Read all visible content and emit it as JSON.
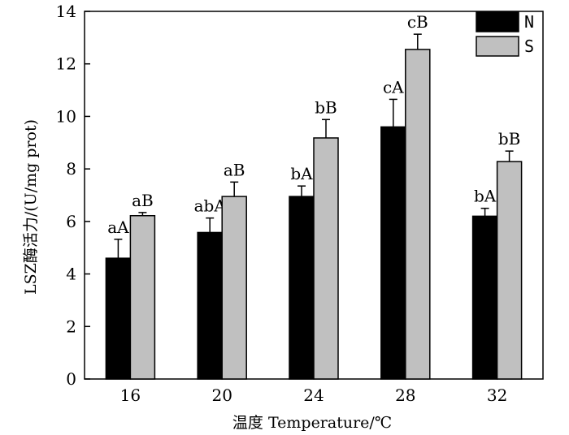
{
  "chart_data": {
    "type": "bar",
    "categories": [
      "16",
      "20",
      "24",
      "28",
      "32"
    ],
    "series": [
      {
        "name": "N",
        "color": "#000000",
        "values": [
          4.6,
          5.58,
          6.95,
          9.6,
          6.2
        ],
        "errors": [
          0.72,
          0.55,
          0.4,
          1.05,
          0.3
        ],
        "labels": [
          "aA",
          "abA",
          "bA",
          "cA",
          "bA"
        ]
      },
      {
        "name": "S",
        "color": "#c0c0c0",
        "values": [
          6.22,
          6.95,
          9.18,
          12.55,
          8.28
        ],
        "errors": [
          0.12,
          0.55,
          0.7,
          0.58,
          0.4
        ],
        "labels": [
          "aB",
          "aB",
          "bB",
          "cB",
          "bB"
        ]
      }
    ],
    "ylim": [
      0,
      14
    ],
    "yticks": [
      0,
      2,
      4,
      6,
      8,
      10,
      12,
      14
    ],
    "ylabel": "LSZ酶活力/(U/mg prot)",
    "xlabel": "温度 Temperature/℃",
    "legend": "top-right"
  }
}
